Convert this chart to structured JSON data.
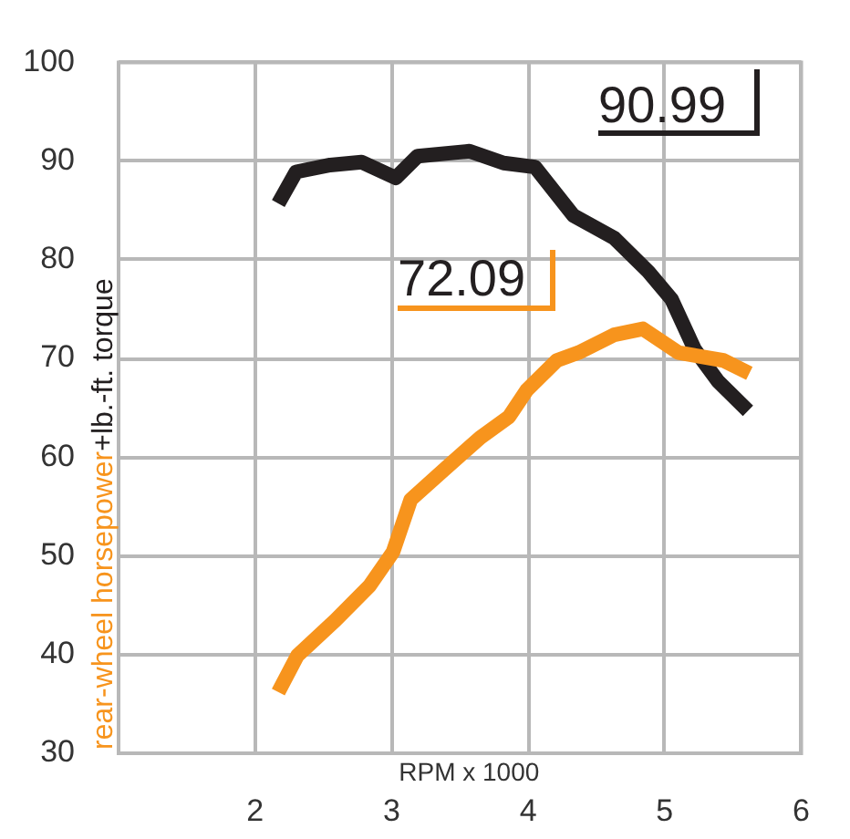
{
  "chart_data": {
    "type": "line",
    "xlabel": "RPM x 1000",
    "xlim": [
      1,
      6
    ],
    "xticks": [
      2,
      3,
      4,
      5,
      6
    ],
    "ylim": [
      30,
      100
    ],
    "yticks": [
      30,
      40,
      50,
      60,
      70,
      80,
      90,
      100
    ],
    "grid": true,
    "legend": false,
    "marker": "none",
    "line_style": "solid",
    "series": [
      {
        "name": "rear-wheel horsepower",
        "color": "#f7941d",
        "x": [
          2.17,
          2.31,
          2.59,
          2.84,
          3.01,
          3.14,
          3.39,
          3.65,
          3.86,
          3.99,
          4.21,
          4.37,
          4.63,
          4.84,
          5.1,
          5.43,
          5.62
        ],
        "values": [
          36.2,
          39.9,
          43.5,
          47,
          50.4,
          55.7,
          58.8,
          62,
          64.1,
          66.8,
          69.8,
          70.6,
          72.4,
          73,
          70.6,
          69.8,
          68.5
        ]
      },
      {
        "name": "+lb.-ft. torque",
        "color": "#231f20",
        "x": [
          2.17,
          2.3,
          2.55,
          2.78,
          3.03,
          3.19,
          3.57,
          3.82,
          4.05,
          4.33,
          4.63,
          4.88,
          5.05,
          5.22,
          5.39,
          5.61
        ],
        "values": [
          85.7,
          88.9,
          89.6,
          89.9,
          88.3,
          90.5,
          91,
          89.8,
          89.4,
          84.5,
          82.2,
          78.8,
          76,
          70.9,
          67.7,
          64.7
        ]
      }
    ],
    "annotations": [
      "72.09",
      "90.99"
    ]
  }
}
